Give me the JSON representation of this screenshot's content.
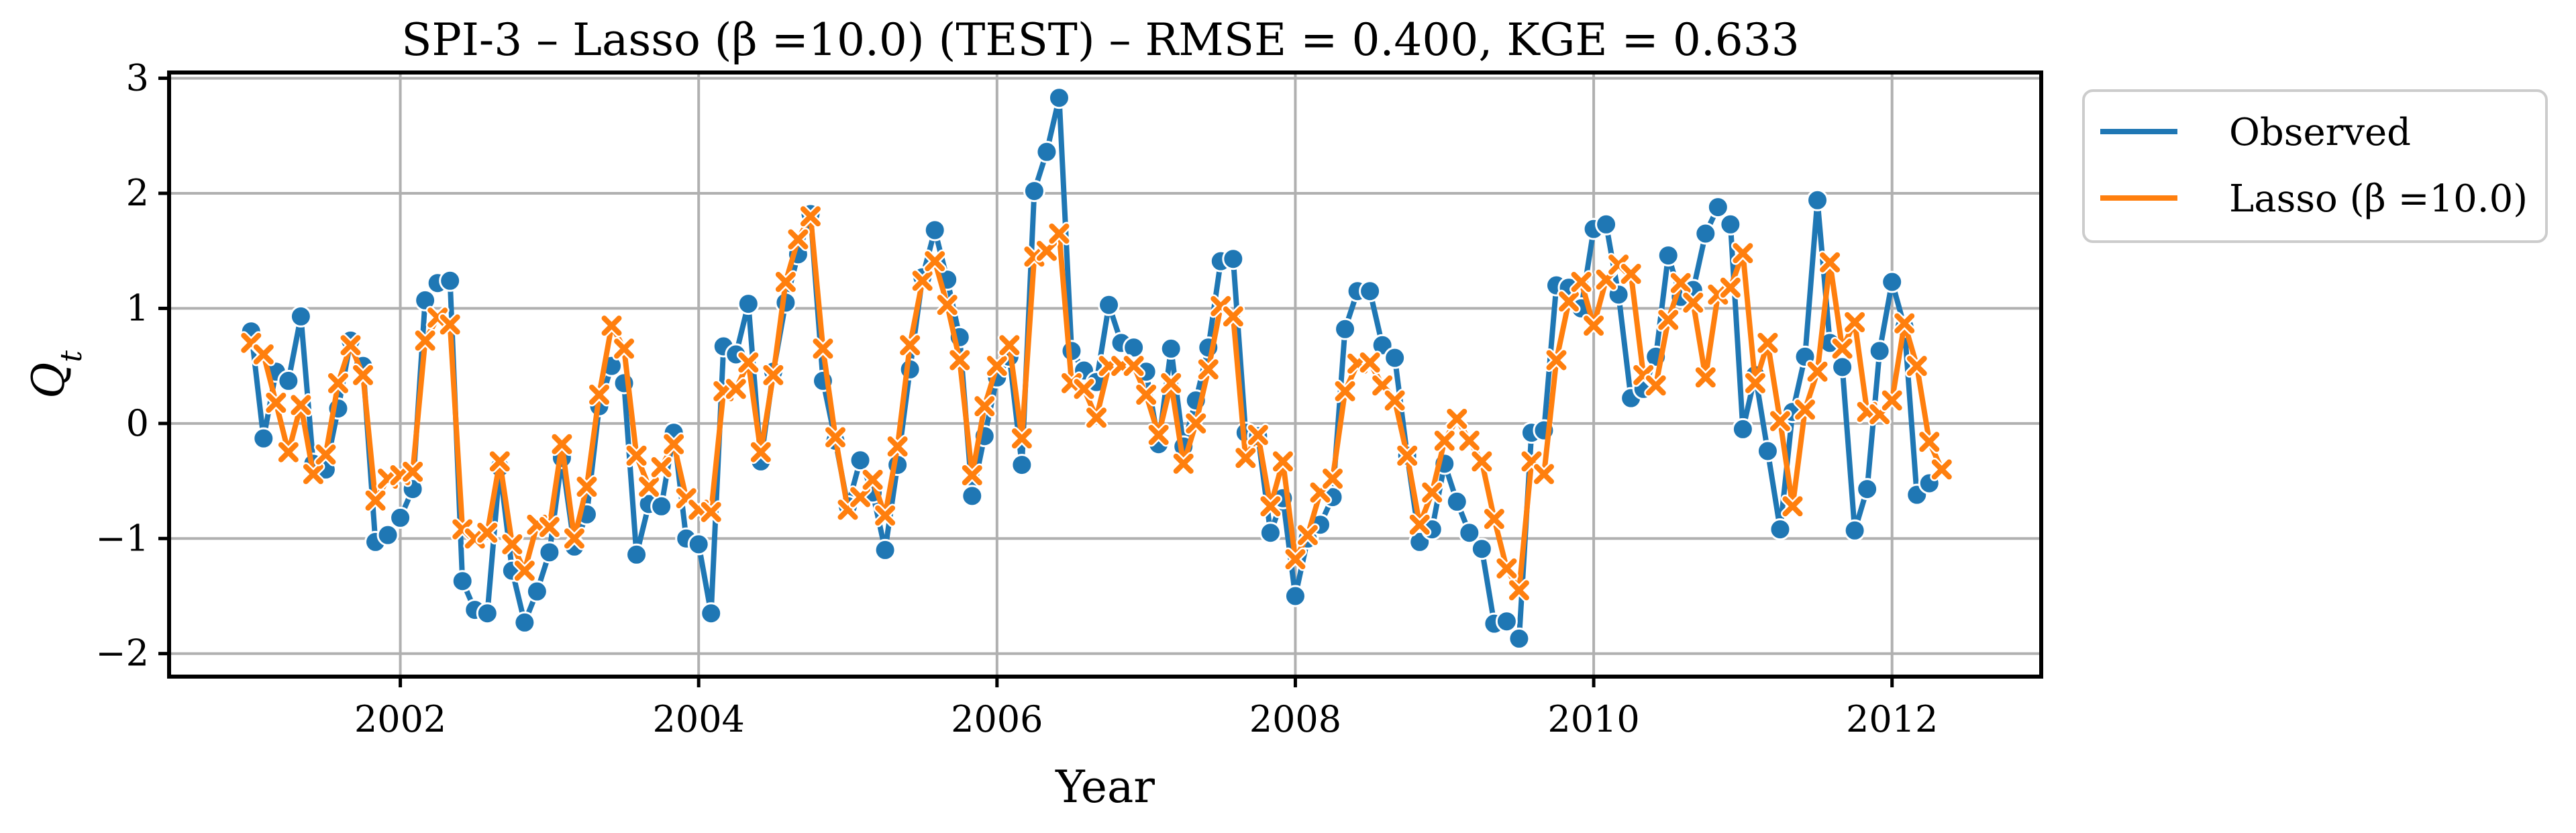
{
  "chart_data": {
    "type": "line",
    "title": "SPI-3 – Lasso (β =10.0) (TEST) – RMSE = 0.400, KGE = 0.633",
    "xlabel": "Year",
    "ylabel": "Q_t",
    "xlim": [
      2000.45,
      2013.0
    ],
    "ylim": [
      -2.2,
      3.05
    ],
    "x_ticks": [
      2002,
      2004,
      2006,
      2008,
      2010,
      2012
    ],
    "x_tick_labels": [
      "2002",
      "2004",
      "2006",
      "2008",
      "2010",
      "2012"
    ],
    "y_ticks": [
      -2,
      -1,
      0,
      1,
      2,
      3
    ],
    "y_tick_labels": [
      "−2",
      "−1",
      "0",
      "1",
      "2",
      "3"
    ],
    "grid": true,
    "legend_position": "outside-top-right",
    "x_start_year": 2001,
    "series": [
      {
        "name": "Observed",
        "color": "#1f77b4",
        "marker": "circle",
        "values": [
          0.8,
          -0.13,
          0.45,
          0.37,
          0.93,
          -0.35,
          -0.4,
          0.13,
          0.72,
          0.5,
          -1.03,
          -0.97,
          -0.82,
          -0.57,
          1.07,
          1.22,
          1.24,
          -1.37,
          -1.62,
          -1.65,
          -0.38,
          -1.28,
          -1.73,
          -1.46,
          -1.12,
          -0.3,
          -1.07,
          -0.79,
          0.15,
          0.5,
          0.35,
          -1.14,
          -0.7,
          -0.72,
          -0.08,
          -1.0,
          -1.05,
          -1.65,
          0.67,
          0.6,
          1.04,
          -0.33,
          0.45,
          1.05,
          1.47,
          1.82,
          0.37,
          -0.15,
          -0.72,
          -0.32,
          -0.6,
          -1.1,
          -0.36,
          0.47,
          1.27,
          1.68,
          1.25,
          0.75,
          -0.63,
          -0.11,
          0.4,
          0.58,
          -0.36,
          2.02,
          2.36,
          2.83,
          0.63,
          0.46,
          0.36,
          1.03,
          0.7,
          0.66,
          0.45,
          -0.18,
          0.65,
          -0.2,
          0.2,
          0.66,
          1.41,
          1.43,
          -0.08,
          -0.11,
          -0.95,
          -0.65,
          -1.5,
          -1.0,
          -0.88,
          -0.64,
          0.82,
          1.15,
          1.15,
          0.68,
          0.57,
          -0.28,
          -1.03,
          -0.92,
          -0.35,
          -0.68,
          -0.95,
          -1.09,
          -1.74,
          -1.72,
          -1.87,
          -0.08,
          -0.06,
          1.2,
          1.18,
          1.0,
          1.69,
          1.73,
          1.12,
          0.22,
          0.3,
          0.58,
          1.46,
          1.1,
          1.16,
          1.65,
          1.88,
          1.73,
          -0.05,
          0.42,
          -0.24,
          -0.92,
          0.1,
          0.58,
          1.94,
          0.7,
          0.49,
          -0.93,
          -0.57,
          0.63,
          1.23,
          0.84,
          -0.62,
          -0.52
        ]
      },
      {
        "name": "Lasso (β =10.0)",
        "color": "#ff7f0e",
        "marker": "x",
        "values": [
          0.7,
          0.6,
          0.18,
          -0.25,
          0.16,
          -0.44,
          -0.27,
          0.35,
          0.68,
          0.42,
          -0.67,
          -0.48,
          -0.45,
          -0.42,
          0.72,
          0.92,
          0.86,
          -0.92,
          -1.0,
          -0.95,
          -0.33,
          -1.05,
          -1.28,
          -0.88,
          -0.9,
          -0.18,
          -1.0,
          -0.55,
          0.25,
          0.85,
          0.65,
          -0.28,
          -0.55,
          -0.38,
          -0.18,
          -0.65,
          -0.75,
          -0.77,
          0.28,
          0.3,
          0.53,
          -0.25,
          0.42,
          1.23,
          1.6,
          1.8,
          0.65,
          -0.12,
          -0.75,
          -0.64,
          -0.49,
          -0.8,
          -0.2,
          0.68,
          1.24,
          1.41,
          1.03,
          0.55,
          -0.45,
          0.15,
          0.5,
          0.68,
          -0.13,
          1.45,
          1.5,
          1.65,
          0.35,
          0.3,
          0.05,
          0.5,
          0.5,
          0.5,
          0.25,
          -0.1,
          0.35,
          -0.35,
          0.0,
          0.47,
          1.02,
          0.93,
          -0.3,
          -0.1,
          -0.72,
          -0.33,
          -1.18,
          -0.97,
          -0.6,
          -0.48,
          0.28,
          0.52,
          0.53,
          0.33,
          0.2,
          -0.28,
          -0.88,
          -0.6,
          -0.15,
          0.04,
          -0.15,
          -0.33,
          -0.83,
          -1.26,
          -1.45,
          -0.33,
          -0.44,
          0.55,
          1.06,
          1.23,
          0.85,
          1.25,
          1.38,
          1.3,
          0.42,
          0.33,
          0.9,
          1.22,
          1.05,
          0.4,
          1.12,
          1.18,
          1.48,
          0.35,
          0.7,
          0.02,
          -0.72,
          0.12,
          0.45,
          1.4,
          0.65,
          0.88,
          0.1,
          0.08,
          0.2,
          0.87,
          0.5,
          -0.16,
          -0.4
        ]
      }
    ]
  }
}
